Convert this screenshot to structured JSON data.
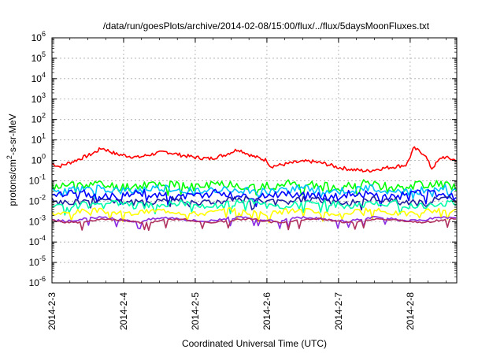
{
  "chart_data": {
    "type": "line",
    "title": "/data/run/goesPlots/archive/2014-02-08/15:00/flux/../flux/5daysMoonFluxes.txt",
    "xlabel": "Coordinated Universal Time (UTC)",
    "ylabel_parts": [
      "protons/cm",
      "2",
      "-s-sr-MeV"
    ],
    "yscale": "log",
    "ylim_exponents": [
      -6,
      6
    ],
    "ytick_base": "10",
    "ytick_exponents": [
      "-6",
      "-5",
      "-4",
      "-3",
      "-2",
      "-1",
      "0",
      "1",
      "2",
      "3",
      "4",
      "5",
      "6"
    ],
    "xlim_days": [
      0,
      5.65
    ],
    "xtick_labels": [
      "2014-2-3",
      "2014-2-4",
      "2014-2-5",
      "2014-2-6",
      "2014-2-7",
      "2014-2-8"
    ],
    "grid": true,
    "series": [
      {
        "color": "#ff0000",
        "x": [
          0,
          0.1,
          0.3,
          0.55,
          0.7,
          0.9,
          1.2,
          1.45,
          1.6,
          1.8,
          2.0,
          2.2,
          2.4,
          2.6,
          2.8,
          3.0,
          3.05,
          3.2,
          3.4,
          3.6,
          3.8,
          4.0,
          4.2,
          4.4,
          4.6,
          4.8,
          4.95,
          5.05,
          5.2,
          5.3,
          5.45,
          5.65
        ],
        "y": [
          0.7,
          0.5,
          0.9,
          2.0,
          4.0,
          2.0,
          1.4,
          2.2,
          2.6,
          1.8,
          1.4,
          1.2,
          1.8,
          3.5,
          1.6,
          1.0,
          0.5,
          0.6,
          0.8,
          0.9,
          0.7,
          0.45,
          0.35,
          0.3,
          0.4,
          0.5,
          0.6,
          4.0,
          2.0,
          0.4,
          1.5,
          1.0
        ]
      },
      {
        "color": "#00ff00",
        "base": 0.06,
        "amp": 0.45,
        "seed": 11
      },
      {
        "color": "#00c0ff",
        "base": 0.035,
        "amp": 0.4,
        "seed": 23
      },
      {
        "color": "#0000ff",
        "base": 0.02,
        "amp": 0.4,
        "seed": 37
      },
      {
        "color": "#2020a0",
        "base": 0.01,
        "amp": 0.35,
        "seed": 41
      },
      {
        "color": "#00ffaa",
        "base": 0.007,
        "amp": 0.35,
        "seed": 53
      },
      {
        "color": "#ffff00",
        "base": 0.003,
        "amp": 0.25,
        "seed": 67
      },
      {
        "color": "#8a2be2",
        "base": 0.0013,
        "amp": 0.12,
        "seed": 79
      },
      {
        "color": "#b03060",
        "base": 0.0011,
        "amp": 0.1,
        "seed": 97
      }
    ]
  }
}
